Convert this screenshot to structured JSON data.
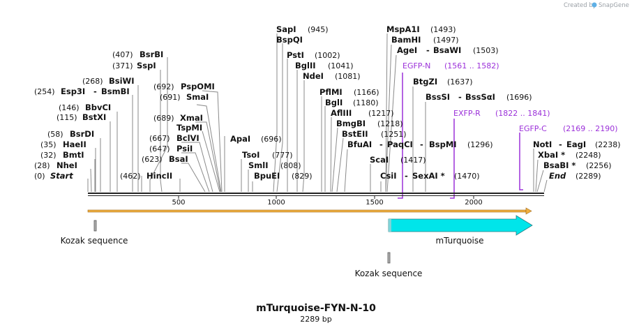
{
  "credit": {
    "text": "Created by",
    "brand": "SnapGene"
  },
  "map": {
    "title": "mTurquoise-FYN-N-10",
    "length_label": "2289 bp",
    "length": 2289,
    "ticks": [
      "500",
      "1000",
      "1500",
      "2000"
    ]
  },
  "left_sites": [
    {
      "name": "BsrBI",
      "pos": "(407)"
    },
    {
      "name": "SspI",
      "pos": "(371)"
    },
    {
      "name": "BsiWI",
      "pos": "(268)"
    },
    {
      "name": "Esp3I",
      "name2": "BsmBI",
      "pos": "(254)"
    },
    {
      "name": "BbvCI",
      "pos": "(146)"
    },
    {
      "name": "BstXI",
      "pos": "(115)"
    },
    {
      "name": "BsrDI",
      "pos": "(58)"
    },
    {
      "name": "HaeII",
      "pos": "(35)"
    },
    {
      "name": "BmtI",
      "pos": "(32)"
    },
    {
      "name": "NheI",
      "pos": "(28)"
    },
    {
      "name": "Start",
      "pos": "(0)"
    },
    {
      "name": "HincII",
      "pos": "(462)"
    }
  ],
  "mid_sites": [
    {
      "name": "PspOMI",
      "pos": "(692)"
    },
    {
      "name": "SmaI",
      "pos": "(691)"
    },
    {
      "name": "XmaI",
      "pos": "(689)"
    },
    {
      "name": "TspMI",
      "pos": ""
    },
    {
      "name": "BclVI",
      "pos": "(667)"
    },
    {
      "name": "PsiI",
      "pos": "(647)"
    },
    {
      "name": "BsaI",
      "pos": "(623)"
    },
    {
      "name": "ApaI",
      "pos": "(696)"
    },
    {
      "name": "TsoI",
      "pos": "(777)"
    },
    {
      "name": "SmlI",
      "pos": "(808)"
    },
    {
      "name": "BpuEI",
      "pos": "(829)"
    }
  ],
  "center_sites": [
    {
      "name": "SapI",
      "pos": "(945)"
    },
    {
      "name": "BspQI",
      "pos": ""
    },
    {
      "name": "PstI",
      "pos": "(1002)"
    },
    {
      "name": "BglII",
      "pos": "(1041)"
    },
    {
      "name": "NdeI",
      "pos": "(1081)"
    },
    {
      "name": "PflMI",
      "pos": "(1166)"
    },
    {
      "name": "BglI",
      "pos": "(1180)"
    },
    {
      "name": "AflIII",
      "pos": "(1217)"
    },
    {
      "name": "BmgBI",
      "pos": "(1218)"
    },
    {
      "name": "BstEII",
      "pos": "(1251)"
    },
    {
      "name": "BfuAI",
      "name2": "PaqCI",
      "name3": "BspMI",
      "pos": "(1296)"
    },
    {
      "name": "ScaI",
      "pos": "(1417)"
    },
    {
      "name": "CsiI",
      "name2": "SexAI *",
      "pos": "(1470)"
    }
  ],
  "right_sites": [
    {
      "name": "MspA1I",
      "pos": "(1493)"
    },
    {
      "name": "BamHI",
      "pos": "(1497)"
    },
    {
      "name": "AgeI",
      "name2": "BsaWI",
      "pos": "(1503)"
    },
    {
      "name": "BtgZI",
      "pos": "(1637)"
    },
    {
      "name": "BssSI",
      "name2": "BssSαI",
      "pos": "(1696)"
    },
    {
      "name": "NotI",
      "name2": "EagI",
      "pos": "(2238)"
    },
    {
      "name": "XbaI *",
      "pos": "(2248)"
    },
    {
      "name": "BsaBI *",
      "pos": "(2256)"
    },
    {
      "name": "End",
      "pos": "(2289)"
    }
  ],
  "primers": [
    {
      "name": "EGFP-N",
      "range": "(1561 .. 1582)",
      "color": "#9b30d9"
    },
    {
      "name": "EXFP-R",
      "range": "(1822 .. 1841)",
      "color": "#9b30d9"
    },
    {
      "name": "EGFP-C",
      "range": "(2169 .. 2190)",
      "color": "#9b30d9"
    }
  ],
  "features": [
    {
      "name": "Kozak sequence",
      "start": 28,
      "end": 36,
      "color": "#b0b0b0"
    },
    {
      "name": "mTurquoise",
      "start": 1500,
      "end": 2217,
      "color": "#00e5ea"
    },
    {
      "name": "Kozak sequence",
      "start": 1500,
      "end": 1508,
      "color": "#b0b0b0"
    }
  ],
  "colors": {
    "backbone": "#222222",
    "orf": "#f0b040",
    "feature": "#00e5ea",
    "primer": "#9b30d9"
  }
}
